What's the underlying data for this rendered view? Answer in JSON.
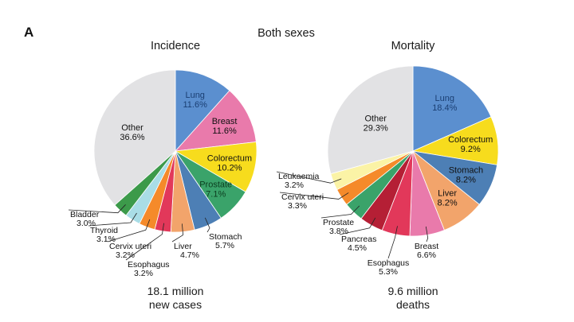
{
  "page": {
    "panel_label": "A",
    "header": "Both sexes"
  },
  "chart_data": [
    {
      "type": "pie",
      "title": "Incidence",
      "total_lines": [
        "18.1 million",
        "new cases"
      ],
      "slices": [
        {
          "name": "Lung",
          "pct": "11.6%",
          "value": 11.6,
          "color": "#5b8fcf",
          "text_color": "#1b3f73",
          "inside": true
        },
        {
          "name": "Breast",
          "pct": "11.6%",
          "value": 11.6,
          "color": "#e97aab",
          "text_color": "#111111",
          "inside": true
        },
        {
          "name": "Colorectum",
          "pct": "10.2%",
          "value": 10.2,
          "color": "#f7dc1d",
          "text_color": "#111111",
          "inside": true
        },
        {
          "name": "Prostate",
          "pct": "7.1%",
          "value": 7.1,
          "color": "#3aa36a",
          "text_color": "#0c3d1f",
          "inside": true
        },
        {
          "name": "Stomach",
          "pct": "5.7%",
          "value": 5.7,
          "color": "#4d7fb5",
          "text_color": "#111111",
          "inside": false
        },
        {
          "name": "Liver",
          "pct": "4.7%",
          "value": 4.7,
          "color": "#f2a46b",
          "text_color": "#111111",
          "inside": false
        },
        {
          "name": "Esophagus",
          "pct": "3.2%",
          "value": 3.2,
          "color": "#e2385a",
          "text_color": "#111111",
          "inside": false
        },
        {
          "name": "Cervix uteri",
          "pct": "3.2%",
          "value": 3.2,
          "color": "#f58a2a",
          "text_color": "#111111",
          "inside": false
        },
        {
          "name": "Thyroid",
          "pct": "3.1%",
          "value": 3.1,
          "color": "#a9dde6",
          "text_color": "#111111",
          "inside": false
        },
        {
          "name": "Bladder",
          "pct": "3.0%",
          "value": 3.0,
          "color": "#3c9a4a",
          "text_color": "#111111",
          "inside": false
        },
        {
          "name": "Other",
          "pct": "36.6%",
          "value": 36.6,
          "color": "#e2e2e4",
          "text_color": "#111111",
          "inside": true
        }
      ]
    },
    {
      "type": "pie",
      "title": "Mortality",
      "total_lines": [
        "9.6 million",
        "deaths"
      ],
      "slices": [
        {
          "name": "Lung",
          "pct": "18.4%",
          "value": 18.4,
          "color": "#5b8fcf",
          "text_color": "#1b3f73",
          "inside": true
        },
        {
          "name": "Colorectum",
          "pct": "9.2%",
          "value": 9.2,
          "color": "#f7dc1d",
          "text_color": "#111111",
          "inside": true
        },
        {
          "name": "Stomach",
          "pct": "8.2%",
          "value": 8.2,
          "color": "#4d7fb5",
          "text_color": "#111111",
          "inside": true
        },
        {
          "name": "Liver",
          "pct": "8.2%",
          "value": 8.2,
          "color": "#f2a46b",
          "text_color": "#111111",
          "inside": true
        },
        {
          "name": "Breast",
          "pct": "6.6%",
          "value": 6.6,
          "color": "#e97aab",
          "text_color": "#111111",
          "inside": false
        },
        {
          "name": "Esophagus",
          "pct": "5.3%",
          "value": 5.3,
          "color": "#e2385a",
          "text_color": "#111111",
          "inside": false
        },
        {
          "name": "Pancreas",
          "pct": "4.5%",
          "value": 4.5,
          "color": "#b51f35",
          "text_color": "#111111",
          "inside": false
        },
        {
          "name": "Prostate",
          "pct": "3.8%",
          "value": 3.8,
          "color": "#3aa36a",
          "text_color": "#111111",
          "inside": false
        },
        {
          "name": "Cervix uteri",
          "pct": "3.3%",
          "value": 3.3,
          "color": "#f58a2a",
          "text_color": "#111111",
          "inside": false
        },
        {
          "name": "Leukaemia",
          "pct": "3.2%",
          "value": 3.2,
          "color": "#fbf3a6",
          "text_color": "#111111",
          "inside": false
        },
        {
          "name": "Other",
          "pct": "29.3%",
          "value": 29.3,
          "color": "#e2e2e4",
          "text_color": "#111111",
          "inside": true
        }
      ]
    }
  ]
}
